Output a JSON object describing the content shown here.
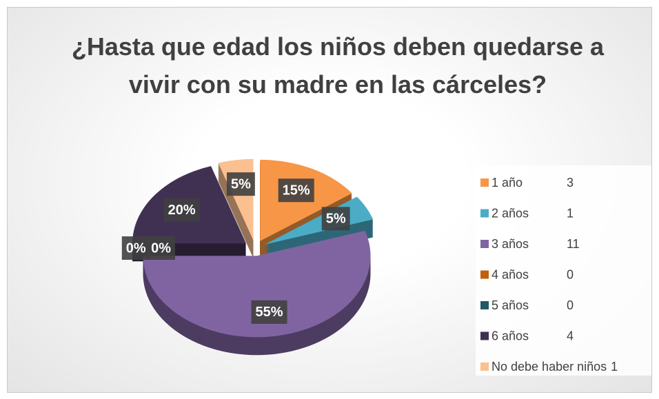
{
  "chart_data": {
    "type": "pie",
    "title": "¿Hasta que edad los niños deben quedarse a vivir con su madre en las cárceles?",
    "categories": [
      "1 año",
      "2 años",
      "3 años",
      "4 años",
      "5 años",
      "6 años",
      "No debe haber niños"
    ],
    "counts": [
      3,
      1,
      11,
      0,
      0,
      4,
      1
    ],
    "values": [
      15,
      5,
      55,
      0,
      0,
      20,
      5
    ],
    "value_labels": [
      "15%",
      "5%",
      "55%",
      "0%",
      "0%",
      "20%",
      "5%"
    ],
    "colors": [
      "#f79646",
      "#4bacc6",
      "#8064a2",
      "#c0600a",
      "#215967",
      "#403152",
      "#fac090"
    ],
    "legend": "right"
  }
}
